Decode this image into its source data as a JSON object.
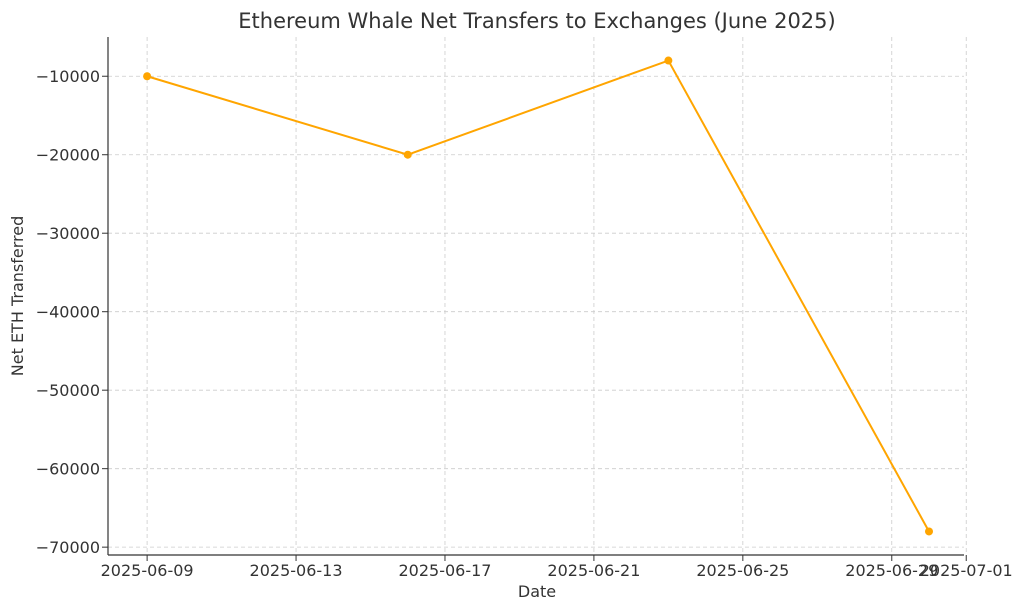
{
  "chart_data": {
    "type": "line",
    "title": "Ethereum Whale Net Transfers to Exchanges (June 2025)",
    "xlabel": "Date",
    "ylabel": "Net ETH Transferred",
    "x": [
      "2025-06-09",
      "2025-06-16",
      "2025-06-23",
      "2025-06-30"
    ],
    "series": [
      {
        "values": [
          -10000,
          -20000,
          -8000,
          -68000
        ]
      }
    ],
    "x_ticks": [
      "2025-06-09",
      "2025-06-13",
      "2025-06-17",
      "2025-06-21",
      "2025-06-25",
      "2025-06-29",
      "2025-07-01"
    ],
    "y_ticks": [
      -10000,
      -20000,
      -30000,
      -40000,
      -50000,
      -60000,
      -70000
    ],
    "y_tick_labels": [
      "−10000",
      "−20000",
      "−30000",
      "−40000",
      "−50000",
      "−60000",
      "−70000"
    ],
    "xlim": [
      "2025-06-08",
      "2025-07-01"
    ],
    "ylim": [
      -71000,
      -5000
    ],
    "grid": true,
    "line_color": "#FFA500",
    "grid_color": "#cccccc",
    "axis_color": "#333333"
  }
}
